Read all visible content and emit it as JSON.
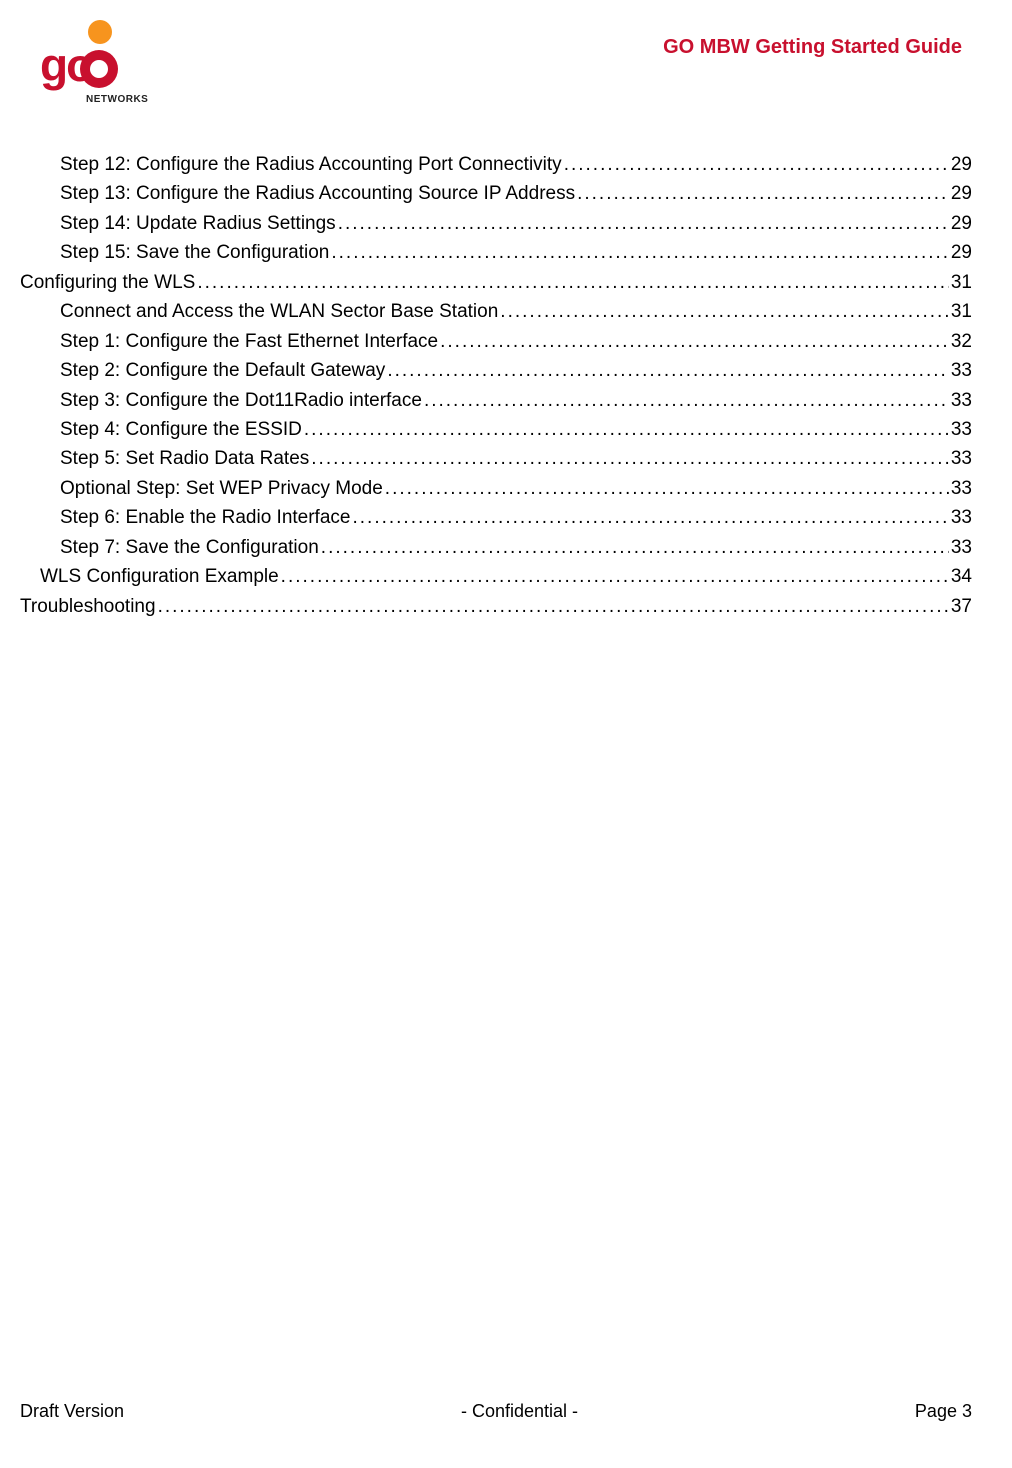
{
  "header": {
    "doc_title": "GO MBW Getting Started Guide",
    "logo_networks": "NETWORKS",
    "logo_go": "go"
  },
  "toc": [
    {
      "level": 2,
      "title": "Step 12: Configure the Radius Accounting Port Connectivity",
      "page": "29"
    },
    {
      "level": 2,
      "title": "Step 13: Configure the Radius Accounting Source IP Address",
      "page": "29"
    },
    {
      "level": 2,
      "title": "Step 14: Update Radius Settings",
      "page": "29"
    },
    {
      "level": 2,
      "title": "Step 15: Save the Configuration",
      "page": "29"
    },
    {
      "level": 0,
      "title": "Configuring the WLS",
      "page": "31"
    },
    {
      "level": 2,
      "title": "Connect and Access the WLAN Sector Base Station",
      "page": "31"
    },
    {
      "level": 2,
      "title": "Step 1: Configure the Fast Ethernet Interface",
      "page": "32"
    },
    {
      "level": 2,
      "title": "Step 2: Configure the Default Gateway",
      "page": "33"
    },
    {
      "level": 2,
      "title": "Step 3: Configure the Dot11Radio interface",
      "page": "33"
    },
    {
      "level": 2,
      "title": "Step 4: Configure the ESSID",
      "page": "33"
    },
    {
      "level": 2,
      "title": "Step 5: Set Radio Data Rates",
      "page": "33"
    },
    {
      "level": 2,
      "title": "Optional Step: Set WEP Privacy Mode",
      "page": "33"
    },
    {
      "level": 2,
      "title": "Step 6: Enable the Radio Interface",
      "page": "33"
    },
    {
      "level": 2,
      "title": "Step 7: Save the Configuration",
      "page": "33"
    },
    {
      "level": 1,
      "title": "WLS Configuration Example",
      "page": "34"
    },
    {
      "level": 0,
      "title": "Troubleshooting",
      "page": "37"
    }
  ],
  "footer": {
    "left": "Draft Version",
    "center": "-  Confidential  -",
    "right": "Page 3"
  }
}
